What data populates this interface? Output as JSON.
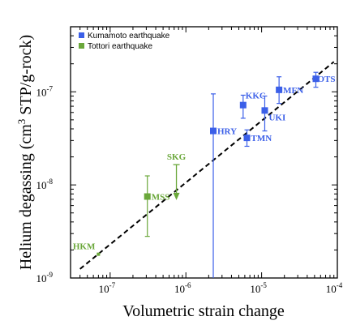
{
  "chart_data": {
    "type": "scatter",
    "title": "",
    "xlabel": "Volumetric strain change",
    "ylabel_parts": {
      "a": "Helium degassing (cm",
      "sup": "3",
      "b": " STP/g-rock)"
    },
    "xscale": "log",
    "yscale": "log",
    "xlim": [
      3e-08,
      0.0001
    ],
    "ylim": [
      1e-09,
      5e-07
    ],
    "grid": false,
    "legend": "top-left",
    "x_ticks": [
      {
        "value": 1e-07,
        "base": "10",
        "exp": "-7"
      },
      {
        "value": 1e-06,
        "base": "10",
        "exp": "-6"
      },
      {
        "value": 1e-05,
        "base": "10",
        "exp": "-5"
      },
      {
        "value": 0.0001,
        "base": "10",
        "exp": "-4"
      }
    ],
    "y_ticks": [
      {
        "value": 1e-09,
        "base": "10",
        "exp": "-9"
      },
      {
        "value": 1e-08,
        "base": "10",
        "exp": "-8"
      },
      {
        "value": 1e-07,
        "base": "10",
        "exp": "-7"
      }
    ],
    "series": [
      {
        "name": "Kumamoto earthquake",
        "color": "#3b5fe8",
        "marker": "square",
        "points": [
          {
            "label": "HRY",
            "x": 2.3e-06,
            "y": 3.8e-08,
            "ylo": 1e-09,
            "yhi": 9.5e-08
          },
          {
            "label": "KKC",
            "x": 5.7e-06,
            "y": 7.2e-08,
            "ylo": 5.2e-08,
            "yhi": 9.2e-08
          },
          {
            "label": "TMN",
            "x": 6.4e-06,
            "y": 3.2e-08,
            "ylo": 2.6e-08,
            "yhi": 3.9e-08
          },
          {
            "label": "UKI",
            "x": 1.1e-05,
            "y": 6.3e-08,
            "ylo": 3.8e-08,
            "yhi": 9e-08
          },
          {
            "label": "MFN",
            "x": 1.7e-05,
            "y": 1.05e-07,
            "ylo": 7.5e-08,
            "yhi": 1.45e-07
          },
          {
            "label": "OTS",
            "x": 5.2e-05,
            "y": 1.38e-07,
            "ylo": 1.12e-07,
            "yhi": 1.62e-07
          }
        ]
      },
      {
        "name": "Tottori earthquake",
        "color": "#6aa73a",
        "marker": "square",
        "points": [
          {
            "label": "HKM",
            "x": 7e-08,
            "y": 1.8e-09,
            "small": true
          },
          {
            "label": "MSS",
            "x": 3.1e-07,
            "y": 7.5e-09,
            "ylo": 2.8e-09,
            "yhi": 1.25e-08
          },
          {
            "label": "SKG",
            "x": 7.5e-07,
            "y": 1.65e-08,
            "upper_limit": true,
            "arrow_to": 7e-09
          }
        ]
      }
    ],
    "fit_line": {
      "style": "dashed",
      "color": "#000000",
      "x": [
        4e-08,
        9e-05
      ],
      "y": [
        1.25e-09,
        2.1e-07
      ]
    }
  }
}
